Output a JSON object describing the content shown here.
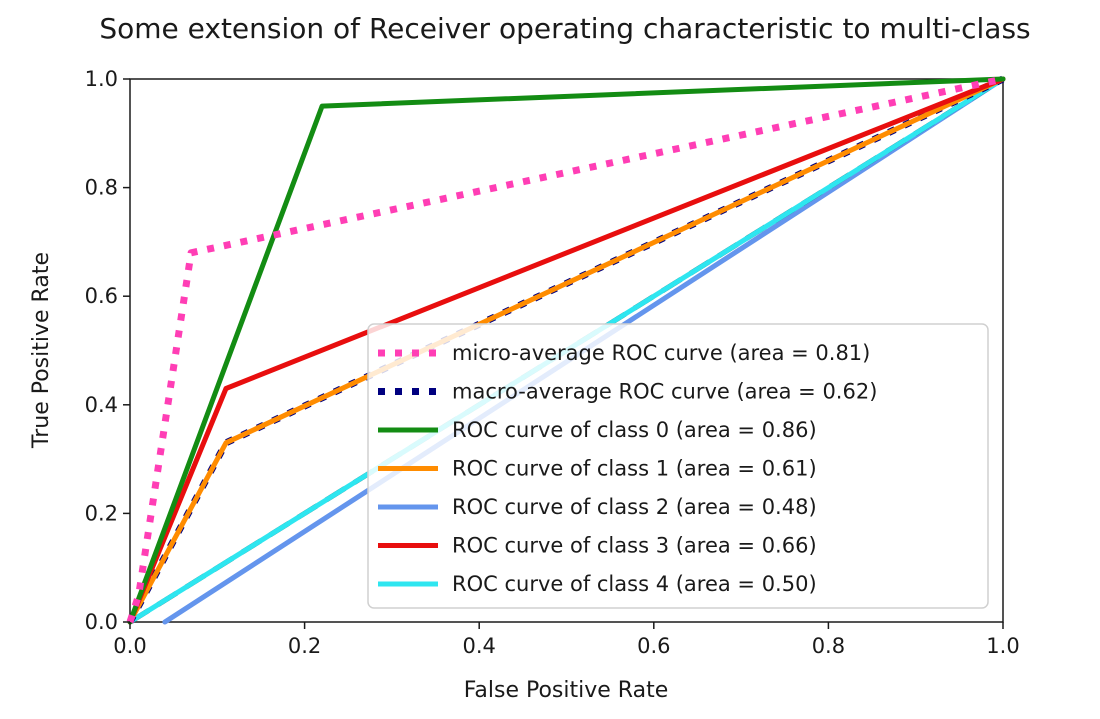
{
  "chart_data": {
    "type": "line",
    "title": "Some extension of Receiver operating characteristic to multi-class",
    "xlabel": "False Positive Rate",
    "ylabel": "True Positive Rate",
    "xlim": [
      0.0,
      1.0
    ],
    "ylim": [
      0.0,
      1.0
    ],
    "xticks": [
      "0.0",
      "0.2",
      "0.4",
      "0.6",
      "0.8",
      "1.0"
    ],
    "yticks": [
      "0.0",
      "0.2",
      "0.4",
      "0.6",
      "0.8",
      "1.0"
    ],
    "grid": false,
    "legend_position": "lower right",
    "series": [
      {
        "name": "micro-average ROC curve (area = 0.81)",
        "color": "#ff3eb5",
        "style": "dotted",
        "x": [
          0.0,
          0.01,
          0.07,
          1.0
        ],
        "y": [
          0.0,
          0.05,
          0.68,
          1.0
        ]
      },
      {
        "name": "macro-average ROC curve (area = 0.62)",
        "color": "#000080",
        "style": "dotted",
        "x": [
          0.0,
          0.11,
          1.0
        ],
        "y": [
          0.0,
          0.33,
          1.0
        ]
      },
      {
        "name": "ROC curve of class 0 (area = 0.86)",
        "color": "#138c13",
        "style": "solid",
        "x": [
          0.0,
          0.22,
          1.0
        ],
        "y": [
          0.0,
          0.95,
          1.0
        ]
      },
      {
        "name": "ROC curve of class 1 (area = 0.61)",
        "color": "#ff8c00",
        "style": "solid",
        "x": [
          0.0,
          0.11,
          1.0
        ],
        "y": [
          0.0,
          0.33,
          1.0
        ]
      },
      {
        "name": "ROC curve of class 2 (area = 0.48)",
        "color": "#6495ed",
        "style": "solid",
        "x": [
          0.04,
          1.0
        ],
        "y": [
          0.0,
          1.0
        ]
      },
      {
        "name": "ROC curve of class 3 (area = 0.66)",
        "color": "#e80e0e",
        "style": "solid",
        "x": [
          0.0,
          0.11,
          1.0
        ],
        "y": [
          0.0,
          0.43,
          1.0
        ]
      },
      {
        "name": "ROC curve of class 4 (area = 0.50)",
        "color": "#2ee6f0",
        "style": "solid",
        "x": [
          0.0,
          1.0
        ],
        "y": [
          0.0,
          1.0
        ]
      }
    ],
    "reference_line": {
      "color": "#000000",
      "style": "dashed",
      "x": [
        0.0,
        1.0
      ],
      "y": [
        0.0,
        1.0
      ]
    }
  }
}
